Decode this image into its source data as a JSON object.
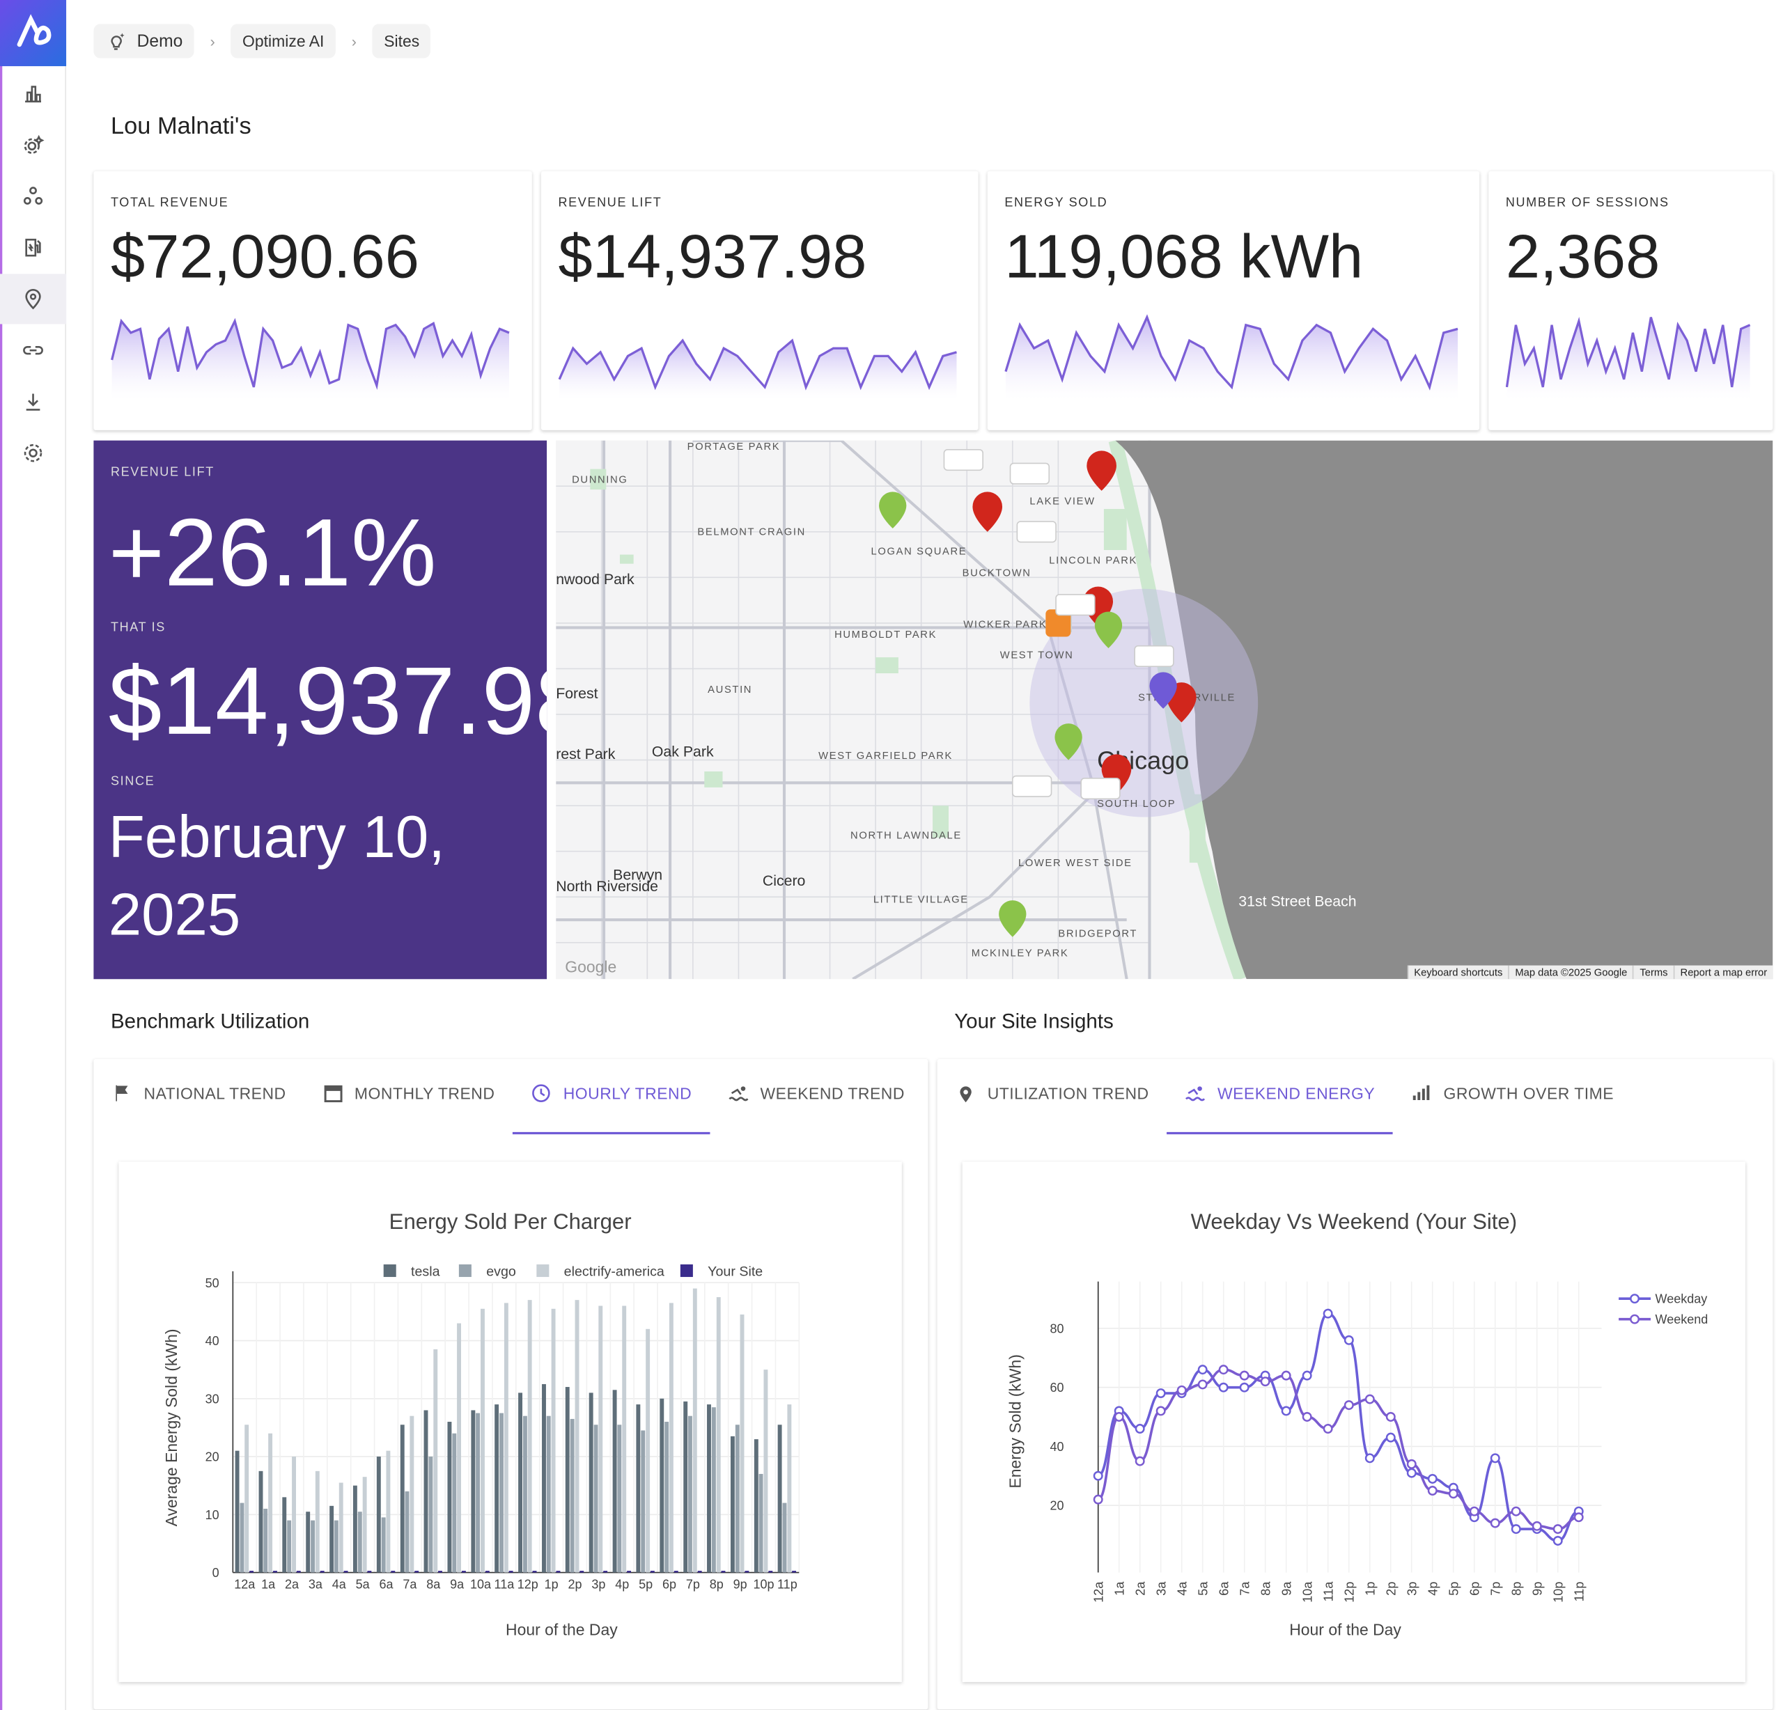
{
  "breadcrumb": {
    "items": [
      "Demo",
      "Optimize AI",
      "Sites"
    ]
  },
  "page": {
    "title": "Lou Malnati's"
  },
  "kpis": [
    {
      "label": "TOTAL REVENUE",
      "value": "$72,090.66",
      "spark": [
        0.45,
        0.95,
        0.8,
        0.85,
        0.2,
        0.72,
        0.85,
        0.3,
        0.88,
        0.35,
        0.55,
        0.65,
        0.7,
        0.95,
        0.5,
        0.1,
        0.85,
        0.7,
        0.35,
        0.4,
        0.6,
        0.25,
        0.55,
        0.15,
        0.2,
        0.9,
        0.85,
        0.45,
        0.12,
        0.85,
        0.9,
        0.75,
        0.5,
        0.85,
        0.92,
        0.5,
        0.7,
        0.5,
        0.78,
        0.25,
        0.6,
        0.85,
        0.8
      ]
    },
    {
      "label": "REVENUE LIFT",
      "value": "$14,937.98",
      "spark": [
        0.2,
        0.6,
        0.4,
        0.55,
        0.2,
        0.5,
        0.6,
        0.1,
        0.5,
        0.7,
        0.4,
        0.2,
        0.6,
        0.5,
        0.3,
        0.1,
        0.55,
        0.7,
        0.1,
        0.5,
        0.6,
        0.6,
        0.1,
        0.5,
        0.5,
        0.3,
        0.55,
        0.1,
        0.5,
        0.55
      ]
    },
    {
      "label": "ENERGY SOLD",
      "value": "119,068 kWh",
      "spark": [
        0.3,
        0.9,
        0.6,
        0.7,
        0.2,
        0.8,
        0.5,
        0.3,
        0.9,
        0.6,
        1,
        0.5,
        0.2,
        0.7,
        0.6,
        0.3,
        0.1,
        0.9,
        0.85,
        0.4,
        0.2,
        0.7,
        0.9,
        0.8,
        0.3,
        0.6,
        0.85,
        0.7,
        0.2,
        0.5,
        0.1,
        0.8,
        0.85
      ]
    },
    {
      "label": "NUMBER OF SESSIONS",
      "value": "2,368",
      "spark": [
        0.1,
        0.9,
        0.4,
        0.6,
        0.1,
        0.9,
        0.2,
        0.6,
        0.95,
        0.4,
        0.7,
        0.3,
        0.6,
        0.2,
        0.8,
        0.3,
        1,
        0.6,
        0.2,
        0.9,
        0.7,
        0.3,
        0.85,
        0.4,
        0.9,
        0.1,
        0.85,
        0.9
      ]
    }
  ],
  "revenue_lift": {
    "label": "REVENUE LIFT",
    "pct": "+26.1%",
    "that_is": "THAT IS",
    "amount": "$14,937.98",
    "since": "SINCE",
    "date_line1": "February 10,",
    "date_line2": "2025"
  },
  "map": {
    "attribution": [
      "Keyboard shortcuts",
      "Map data ©2025 Google",
      "Terms",
      "Report a map error"
    ],
    "labels": [
      "PORTAGE PARK",
      "DUNNING",
      "BELMONT CRAGIN",
      "LOGAN SQUARE",
      "LAKE VIEW",
      "LINCOLN PARK",
      "BUCKTOWN",
      "WICKER PARK",
      "WEST TOWN",
      "HUMBOLDT PARK",
      "AUSTIN",
      "nwood Park",
      "Forest",
      "rest Park",
      "Oak Park",
      "WEST GARFIELD PARK",
      "Chicago",
      "SOUTH LOOP",
      "NORTH LAWNDALE",
      "LOWER WEST SIDE",
      "LITTLE VILLAGE",
      "BRIDGEPORT",
      "MCKINLEY PARK",
      "Berwyn",
      "Cicero",
      "North Riverside",
      "31st Street Beach",
      "STREETERVILLE"
    ]
  },
  "benchmark": {
    "title": "Benchmark Utilization",
    "tabs": [
      "NATIONAL TREND",
      "MONTHLY TREND",
      "HOURLY TREND",
      "WEEKEND TREND"
    ],
    "active_tab": "HOURLY TREND"
  },
  "insights": {
    "title": "Your Site Insights",
    "tabs": [
      "UTILIZATION TREND",
      "WEEKEND ENERGY",
      "GROWTH OVER TIME"
    ],
    "active_tab": "WEEKEND ENERGY"
  },
  "colors": {
    "accent": "#6f5ad6",
    "lift_bg": "#4b3486",
    "tesla": "#5e6e79",
    "evgo": "#97a4ae",
    "electrify": "#c7cfd5",
    "your_site": "#3a2c8c"
  },
  "chart_data": [
    {
      "type": "bar",
      "title": "Energy Sold Per Charger",
      "xlabel": "Hour of the Day",
      "ylabel": "Average Energy Sold (kWh)",
      "ylim": [
        0,
        50
      ],
      "categories": [
        "12a",
        "1a",
        "2a",
        "3a",
        "4a",
        "5a",
        "6a",
        "7a",
        "8a",
        "9a",
        "10a",
        "11a",
        "12p",
        "1p",
        "2p",
        "3p",
        "4p",
        "5p",
        "6p",
        "7p",
        "8p",
        "9p",
        "10p",
        "11p"
      ],
      "yticks": [
        0,
        10,
        20,
        30,
        40,
        50
      ],
      "legend": "top",
      "series": [
        {
          "name": "tesla",
          "values": [
            21,
            17.5,
            13,
            10.5,
            11.5,
            15,
            20,
            25.5,
            28,
            26,
            28,
            29,
            31,
            32.5,
            32,
            31,
            31.5,
            29,
            30,
            29.5,
            29,
            23.5,
            23,
            25.5
          ]
        },
        {
          "name": "evgo",
          "values": [
            12,
            11,
            9,
            9,
            9,
            10.5,
            9.5,
            14,
            20,
            24,
            27.5,
            27.5,
            27,
            27,
            26.5,
            25.5,
            25.5,
            24.5,
            26,
            27,
            28.5,
            25.5,
            17,
            12
          ]
        },
        {
          "name": "electrify-america",
          "values": [
            25.5,
            24,
            20,
            17.5,
            15.5,
            16.5,
            21,
            27,
            38.5,
            43,
            45.5,
            46.5,
            47,
            45.5,
            47,
            46,
            46,
            42,
            46.5,
            49,
            47.5,
            44.5,
            35,
            29
          ]
        },
        {
          "name": "Your Site",
          "values": [
            0.3,
            0.3,
            0.3,
            0.3,
            0.3,
            0.3,
            0.3,
            0.3,
            0.3,
            0.3,
            0.3,
            0.3,
            0.3,
            0.3,
            0.3,
            0.3,
            0.3,
            0.3,
            0.3,
            0.3,
            0.3,
            0.3,
            0.3,
            0.3
          ]
        }
      ]
    },
    {
      "type": "line",
      "title": "Weekday Vs Weekend (Your Site)",
      "xlabel": "Hour of the Day",
      "ylabel": "Energy Sold (kWh)",
      "yticks": [
        20,
        40,
        60,
        80
      ],
      "ylim": [
        5,
        92
      ],
      "legend": "top-right",
      "categories": [
        "12a",
        "1a",
        "2a",
        "3a",
        "4a",
        "5a",
        "6a",
        "7a",
        "8a",
        "9a",
        "10a",
        "11a",
        "12p",
        "1p",
        "2p",
        "3p",
        "4p",
        "5p",
        "6p",
        "7p",
        "8p",
        "9p",
        "10p",
        "11p"
      ],
      "series": [
        {
          "name": "Weekday",
          "values": [
            30,
            52,
            46,
            58,
            58,
            66,
            60,
            60,
            64,
            52,
            64,
            85,
            76,
            36,
            43,
            31,
            29,
            26,
            16,
            36,
            12,
            12,
            8,
            18
          ]
        },
        {
          "name": "Weekend",
          "values": [
            22,
            50,
            35,
            52,
            59,
            61,
            66,
            64,
            62,
            64,
            50,
            46,
            54,
            56,
            50,
            34,
            25,
            24,
            18,
            14,
            18,
            13,
            12,
            16
          ]
        }
      ]
    }
  ]
}
